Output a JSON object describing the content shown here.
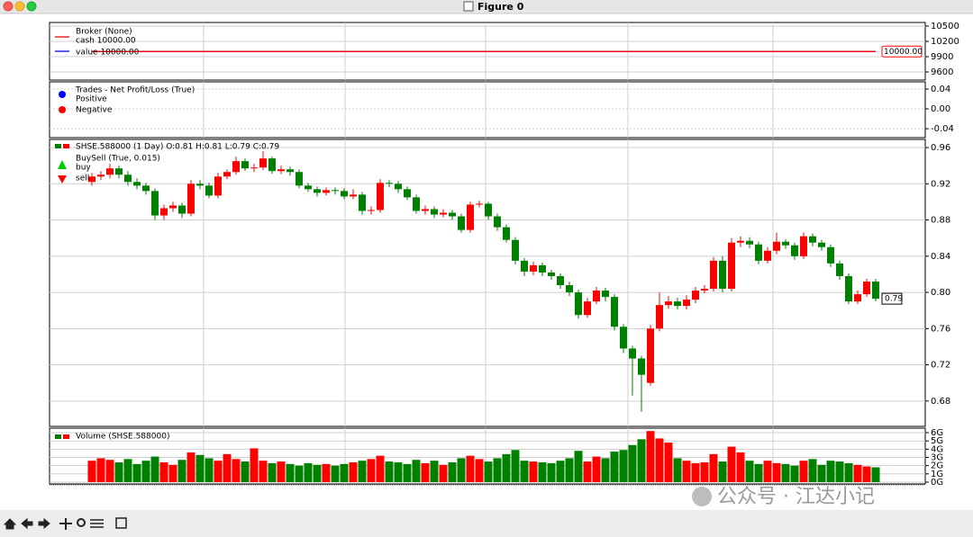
{
  "window": {
    "title": "Figure 0"
  },
  "watermark": "公众号 · 江达小记",
  "chart_data": [
    {
      "type": "line",
      "legend_title": "Broker (None)",
      "series": [
        {
          "name": "cash 10000.00",
          "color": "#ff0000",
          "values": [
            10000,
            10000,
            10000,
            10000,
            10000,
            10000,
            10000,
            10000,
            10000,
            10000,
            10000,
            10000,
            10000,
            10000,
            10000,
            10000,
            10000,
            10000,
            10000,
            10000,
            10000,
            10000,
            10000,
            10000,
            10000,
            10000,
            10000,
            10000,
            10000,
            10000,
            10000,
            10000,
            10000,
            10000,
            10000,
            10000,
            10000,
            10000,
            10000,
            10000,
            10000,
            10000,
            10000,
            10000,
            10000,
            10000,
            10000,
            10000,
            10000,
            10000,
            10000,
            10000,
            10000,
            10000,
            10000,
            10000,
            10000,
            10000,
            10000,
            10000,
            10000,
            10000,
            10000,
            10000,
            10000,
            10000,
            10000,
            10000,
            10000,
            10000,
            10000,
            10000,
            10000,
            10000,
            10000,
            10000,
            10000,
            10000,
            10000,
            10000,
            10000,
            10000,
            10000,
            10000,
            10000,
            10000,
            10000,
            10000
          ]
        },
        {
          "name": "value 10000.00",
          "color": "#0000ff",
          "values": [
            10000,
            10000,
            10000,
            10000,
            10000,
            10000,
            10000,
            10000,
            10000,
            10000,
            10000,
            10000,
            10000,
            10000,
            10000,
            10000,
            10000,
            10000,
            10000,
            10000,
            10000,
            10000,
            10000,
            10000,
            10000,
            10000,
            10000,
            10000,
            10000,
            10000,
            10000,
            10000,
            10000,
            10000,
            10000,
            10000,
            10000,
            10000,
            10000,
            10000,
            10000,
            10000,
            10000,
            10000,
            10000,
            10000,
            10000,
            10000,
            10000,
            10000,
            10000,
            10000,
            10000,
            10000,
            10000,
            10000,
            10000,
            10000,
            10000,
            10000,
            10000,
            10000,
            10000,
            10000,
            10000,
            10000,
            10000,
            10000,
            10000,
            10000,
            10000,
            10000,
            10000,
            10000,
            10000,
            10000,
            10000,
            10000,
            10000,
            10000,
            10000,
            10000,
            10000,
            10000,
            10000,
            10000,
            10000,
            10000
          ]
        }
      ],
      "last_value_label": "10000.00",
      "ylim": [
        9441,
        10570
      ],
      "yticks": [
        9600,
        9900,
        10200,
        10500
      ],
      "grid": true,
      "legend": "upper left"
    },
    {
      "type": "scatter",
      "legend_title": "Trades - Net Profit/Loss (True)",
      "series": [
        {
          "name": "Positive",
          "color": "#0000ff",
          "values": []
        },
        {
          "name": "Negative",
          "color": "#ff0000",
          "values": []
        }
      ],
      "ylim": [
        -0.058,
        0.0545
      ],
      "yticks": [
        -0.04,
        {
          "value": 0,
          "label": "0.00"
        },
        0.04
      ],
      "grid": true,
      "legend": "upper left"
    },
    {
      "type": "candlestick",
      "name": "SHSE.588000 (1 Day) O:0.81 H:0.81 L:0.79 C:0.79",
      "open": [
        0.922,
        0.928,
        0.93,
        0.937,
        0.93,
        0.922,
        0.918,
        0.912,
        0.885,
        0.893,
        0.896,
        0.887,
        0.92,
        0.918,
        0.907,
        0.928,
        0.933,
        0.945,
        0.937,
        0.938,
        0.948,
        0.934,
        0.936,
        0.933,
        0.918,
        0.914,
        0.91,
        0.913,
        0.912,
        0.906,
        0.908,
        0.89,
        0.891,
        0.921,
        0.92,
        0.914,
        0.905,
        0.89,
        0.892,
        0.886,
        0.888,
        0.884,
        0.869,
        0.897,
        0.898,
        0.884,
        0.872,
        0.858,
        0.835,
        0.823,
        0.83,
        0.822,
        0.818,
        0.808,
        0.8,
        0.775,
        0.79,
        0.802,
        0.795,
        0.762,
        0.738,
        0.727,
        0.7,
        0.76,
        0.786,
        0.79,
        0.785,
        0.792,
        0.802,
        0.804,
        0.835,
        0.804,
        0.855,
        0.857,
        0.853,
        0.835,
        0.846,
        0.856,
        0.852,
        0.84,
        0.862,
        0.855,
        0.85,
        0.832,
        0.818,
        0.79,
        0.798,
        0.812
      ],
      "high": [
        0.932,
        0.934,
        0.942,
        0.94,
        0.934,
        0.926,
        0.921,
        0.915,
        0.897,
        0.9,
        0.899,
        0.924,
        0.924,
        0.921,
        0.932,
        0.936,
        0.95,
        0.948,
        0.942,
        0.956,
        0.95,
        0.94,
        0.939,
        0.936,
        0.921,
        0.917,
        0.916,
        0.916,
        0.915,
        0.914,
        0.911,
        0.895,
        0.925,
        0.924,
        0.923,
        0.917,
        0.908,
        0.896,
        0.895,
        0.892,
        0.891,
        0.887,
        0.9,
        0.901,
        0.9,
        0.887,
        0.875,
        0.861,
        0.838,
        0.834,
        0.833,
        0.825,
        0.821,
        0.812,
        0.803,
        0.794,
        0.806,
        0.805,
        0.798,
        0.765,
        0.741,
        0.73,
        0.764,
        0.8,
        0.796,
        0.794,
        0.797,
        0.806,
        0.808,
        0.839,
        0.84,
        0.86,
        0.862,
        0.861,
        0.856,
        0.85,
        0.866,
        0.859,
        0.855,
        0.866,
        0.865,
        0.858,
        0.853,
        0.835,
        0.821,
        0.802,
        0.815,
        0.815
      ],
      "low": [
        0.918,
        0.924,
        0.926,
        0.926,
        0.918,
        0.914,
        0.908,
        0.88,
        0.88,
        0.889,
        0.882,
        0.884,
        0.914,
        0.904,
        0.904,
        0.925,
        0.93,
        0.934,
        0.933,
        0.935,
        0.931,
        0.931,
        0.929,
        0.915,
        0.911,
        0.906,
        0.907,
        0.908,
        0.903,
        0.903,
        0.886,
        0.886,
        0.888,
        0.916,
        0.91,
        0.902,
        0.887,
        0.886,
        0.882,
        0.883,
        0.88,
        0.866,
        0.866,
        0.894,
        0.88,
        0.868,
        0.855,
        0.831,
        0.818,
        0.819,
        0.818,
        0.814,
        0.804,
        0.796,
        0.771,
        0.772,
        0.787,
        0.79,
        0.758,
        0.733,
        0.686,
        0.668,
        0.697,
        0.757,
        0.782,
        0.781,
        0.781,
        0.788,
        0.799,
        0.801,
        0.8,
        0.801,
        0.85,
        0.849,
        0.831,
        0.832,
        0.842,
        0.848,
        0.836,
        0.837,
        0.851,
        0.846,
        0.828,
        0.814,
        0.787,
        0.787,
        0.795,
        0.79
      ],
      "close": [
        0.928,
        0.93,
        0.937,
        0.93,
        0.922,
        0.918,
        0.912,
        0.885,
        0.893,
        0.896,
        0.887,
        0.92,
        0.918,
        0.907,
        0.928,
        0.933,
        0.945,
        0.937,
        0.938,
        0.948,
        0.934,
        0.936,
        0.933,
        0.918,
        0.914,
        0.91,
        0.913,
        0.912,
        0.906,
        0.908,
        0.89,
        0.891,
        0.921,
        0.92,
        0.914,
        0.905,
        0.89,
        0.892,
        0.886,
        0.888,
        0.884,
        0.869,
        0.897,
        0.898,
        0.884,
        0.872,
        0.858,
        0.835,
        0.823,
        0.83,
        0.822,
        0.818,
        0.808,
        0.8,
        0.775,
        0.79,
        0.802,
        0.795,
        0.762,
        0.738,
        0.727,
        0.709,
        0.76,
        0.786,
        0.79,
        0.785,
        0.792,
        0.802,
        0.804,
        0.835,
        0.804,
        0.855,
        0.857,
        0.853,
        0.835,
        0.846,
        0.856,
        0.852,
        0.84,
        0.862,
        0.855,
        0.85,
        0.832,
        0.818,
        0.79,
        0.798,
        0.812,
        0.793
      ],
      "up_color": "#ff0000",
      "down_color": "#008000",
      "last_label": "0.79",
      "buysell": {
        "title": "BuySell (True, 0.015)",
        "series": [
          {
            "name": "buy",
            "color": "#00cc00"
          },
          {
            "name": "sell",
            "color": "#ff0000"
          }
        ]
      },
      "ylim": [
        0.652,
        0.969
      ],
      "yticks": [
        0.68,
        0.72,
        0.76,
        {
          "value": 0.8,
          "label": "0.80"
        },
        0.84,
        0.88,
        0.92,
        0.96
      ],
      "grid": true,
      "legend": "upper left"
    },
    {
      "type": "bar",
      "title": "Volume (SHSE.588000)",
      "values": [
        2.6,
        2.9,
        2.7,
        2.4,
        2.8,
        2.2,
        2.6,
        3.1,
        2.4,
        2.1,
        2.7,
        3.6,
        3.3,
        2.9,
        2.6,
        3.4,
        2.8,
        2.5,
        4.1,
        2.6,
        2.3,
        2.5,
        2.2,
        2.0,
        2.3,
        2.1,
        2.2,
        2.0,
        2.2,
        2.4,
        2.6,
        2.8,
        3.2,
        2.5,
        2.4,
        2.2,
        2.7,
        2.3,
        2.6,
        2.1,
        2.4,
        2.9,
        3.2,
        2.8,
        2.5,
        2.9,
        3.4,
        3.9,
        2.6,
        2.5,
        2.4,
        2.3,
        2.6,
        2.9,
        3.8,
        2.5,
        3.1,
        2.9,
        3.7,
        3.9,
        4.5,
        5.2,
        6.2,
        5.3,
        4.8,
        2.9,
        2.6,
        2.3,
        2.4,
        3.4,
        2.5,
        4.3,
        3.6,
        2.6,
        2.2,
        2.6,
        2.3,
        2.2,
        2.0,
        2.6,
        2.8,
        2.1,
        2.6,
        2.5,
        2.3,
        2.1,
        1.9,
        1.8
      ],
      "ylim": [
        -0.22,
        6.55
      ],
      "yticks": [
        {
          "value": 0,
          "label": "0G"
        },
        {
          "value": 1,
          "label": "1G"
        },
        {
          "value": 2,
          "label": "2G"
        },
        {
          "value": 3,
          "label": "3G"
        },
        {
          "value": 4,
          "label": "4G"
        },
        {
          "value": 5,
          "label": "5G"
        },
        {
          "value": 6,
          "label": "6G"
        }
      ],
      "grid": true,
      "legend": "upper left"
    }
  ]
}
